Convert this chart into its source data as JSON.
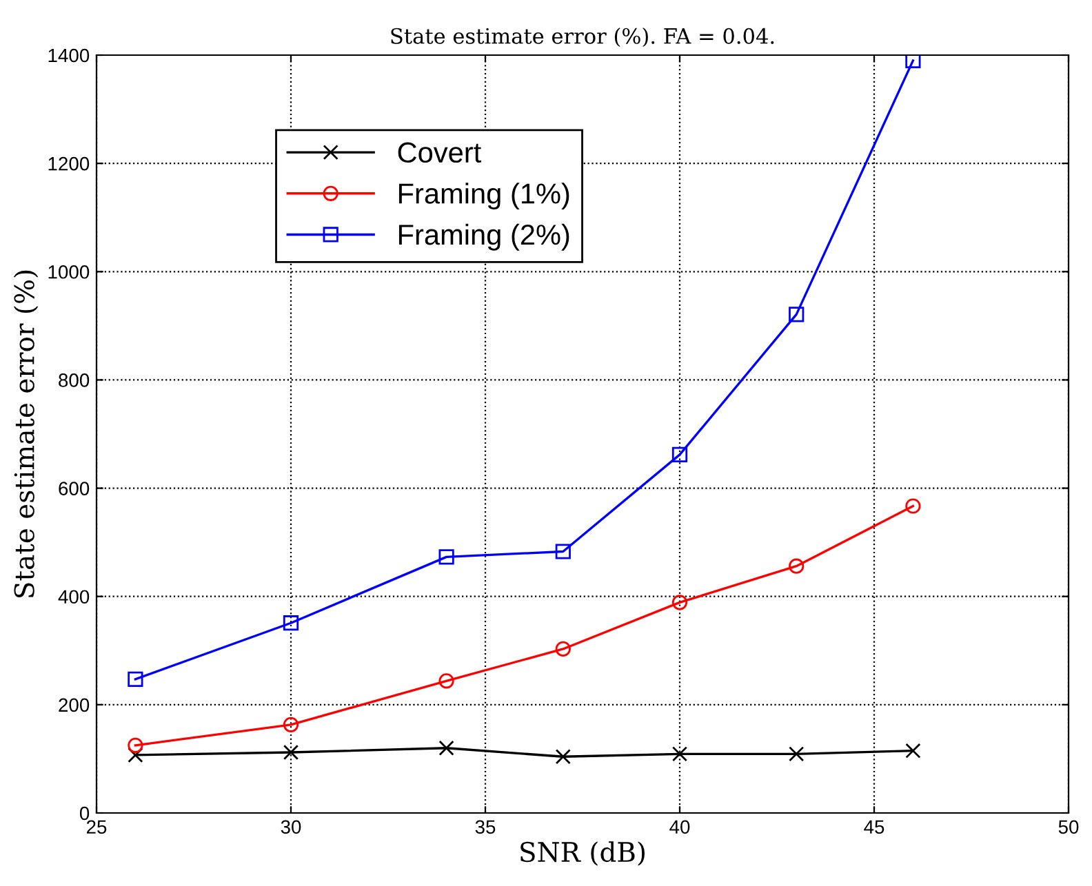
{
  "chart_data": {
    "type": "line",
    "title": "State estimate error (%). FA = 0.04.",
    "xlabel": "SNR (dB)",
    "ylabel": "State estimate error (%)",
    "x": [
      26,
      30,
      34,
      37,
      40,
      43,
      46
    ],
    "series": [
      {
        "name": "Covert",
        "color": "#000000",
        "marker": "cross",
        "values": [
          107,
          112,
          120,
          104,
          109,
          109,
          115
        ]
      },
      {
        "name": "Framing (1%)",
        "color": "#ff0000",
        "marker": "circle",
        "values": [
          125,
          163,
          244,
          303,
          389,
          456,
          567
        ]
      },
      {
        "name": "Framing (2%)",
        "color": "#0000ff",
        "marker": "square",
        "values": [
          247,
          351,
          473,
          483,
          662,
          921,
          1390
        ]
      }
    ],
    "xlim": [
      25,
      50
    ],
    "xticks": [
      25,
      30,
      35,
      40,
      45,
      50
    ],
    "ylim": [
      0,
      1400
    ],
    "yticks": [
      0,
      200,
      400,
      600,
      800,
      1000,
      1200,
      1400
    ],
    "grid": true,
    "legend": "top left",
    "line_style": "solid"
  }
}
